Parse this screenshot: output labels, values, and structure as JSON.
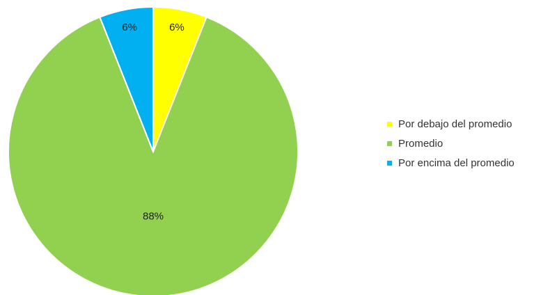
{
  "chart_data": {
    "type": "pie",
    "title": "",
    "categories": [
      "Por debajo del promedio",
      "Promedio",
      "Por encima del promedio"
    ],
    "values": [
      6,
      88,
      6
    ],
    "data_labels": [
      "6%",
      "88%",
      "6%"
    ],
    "colors": [
      "#ffff00",
      "#92d050",
      "#00b0f0"
    ],
    "legend_position": "right"
  }
}
